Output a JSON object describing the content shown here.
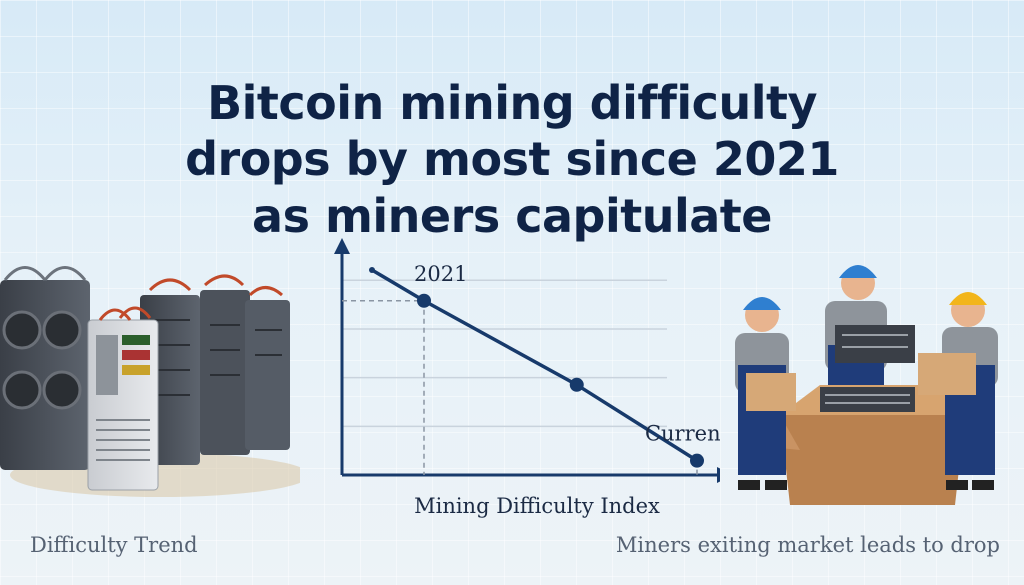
{
  "headline": {
    "line1": "Bitcoin mining difficulty",
    "line2": "drops by most since 2021",
    "line3": "as miners capitulate"
  },
  "captions": {
    "left": "Difficulty Trend",
    "right": "Miners exiting market leads to drop"
  },
  "chart_data": {
    "type": "line",
    "title": "",
    "xlabel": "Mining Difficulty Index",
    "ylabel": "",
    "grid": true,
    "legend": "none",
    "points": [
      {
        "x": 0.0,
        "y": 1.0,
        "label": "",
        "marker": false
      },
      {
        "x": 0.16,
        "y": 0.85,
        "label": "2021",
        "marker": true
      },
      {
        "x": 0.63,
        "y": 0.44,
        "label": "",
        "marker": true
      },
      {
        "x": 1.0,
        "y": 0.07,
        "label": "Current",
        "marker": true
      }
    ],
    "xlim": [
      0,
      1.0
    ],
    "ylim": [
      0,
      1.0
    ],
    "line_color": "#173a6b"
  },
  "colors": {
    "title": "#0f2346",
    "line": "#173a6b",
    "caption": "#566273"
  }
}
